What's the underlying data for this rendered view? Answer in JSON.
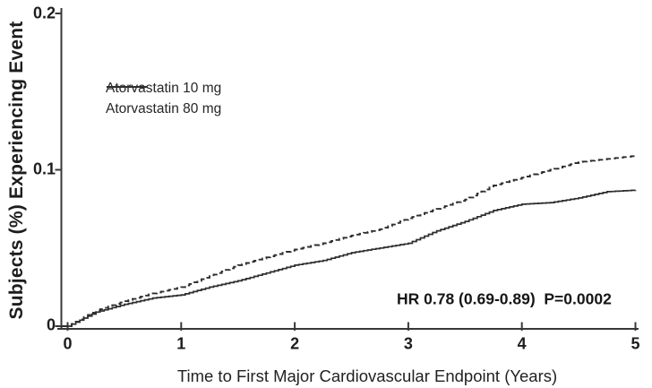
{
  "figure": {
    "background": "#ffffff",
    "text_color": "#1d1d1d",
    "curve_color": "#2e2e2e",
    "axis_color": "#383838"
  },
  "chart_data": {
    "type": "line",
    "subtype": "kaplan-meier-step",
    "title": "",
    "xlabel": "Time to First Major Cardiovascular Endpoint (Years)",
    "ylabel": "Subjects (%) Experiencing Event",
    "xlim": [
      0,
      5
    ],
    "ylim": [
      0,
      0.2
    ],
    "x_ticks": [
      0,
      1,
      2,
      3,
      4,
      5
    ],
    "x_tick_labels": [
      "0",
      "1",
      "2",
      "3",
      "4",
      "5"
    ],
    "y_ticks": [
      0,
      0.1,
      0.2
    ],
    "y_tick_labels": [
      "0",
      "0.1",
      "0.2"
    ],
    "grid": false,
    "legend_position": "upper-left-inside",
    "x": [
      0,
      0.25,
      0.5,
      0.75,
      1,
      1.25,
      1.5,
      1.75,
      2,
      2.25,
      2.5,
      2.75,
      3,
      3.25,
      3.5,
      3.75,
      4,
      4.25,
      4.5,
      4.75,
      5
    ],
    "series": [
      {
        "name": "Atorvastatin 10 mg",
        "line_style": "dashed",
        "values": [
          0,
          0.01,
          0.016,
          0.021,
          0.025,
          0.032,
          0.039,
          0.044,
          0.049,
          0.053,
          0.058,
          0.062,
          0.069,
          0.075,
          0.081,
          0.09,
          0.095,
          0.1,
          0.105,
          0.107,
          0.109
        ]
      },
      {
        "name": "Atorvastatin 80 mg",
        "line_style": "solid",
        "values": [
          0,
          0.009,
          0.014,
          0.018,
          0.02,
          0.025,
          0.029,
          0.034,
          0.039,
          0.042,
          0.047,
          0.05,
          0.053,
          0.061,
          0.067,
          0.074,
          0.078,
          0.079,
          0.082,
          0.086,
          0.087
        ]
      }
    ],
    "annotation": "HR 0.78 (0.69-0.89)  P=0.0002"
  }
}
